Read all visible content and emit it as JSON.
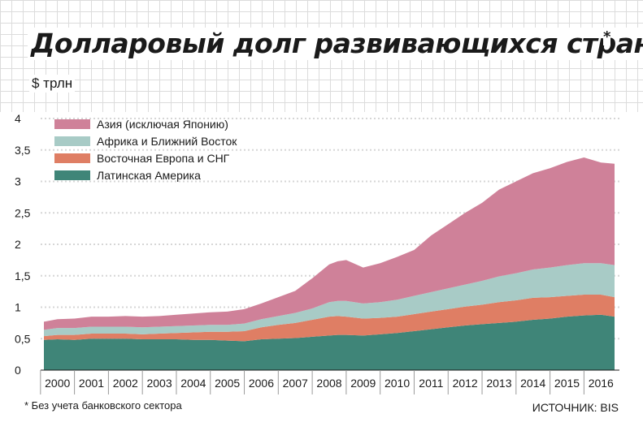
{
  "header": {
    "title": "Долларовый долг развивающихся стран",
    "title_mark": "*",
    "unit": "$ трлн"
  },
  "footer": {
    "footnote": "* Без учета банковского сектора",
    "source": "ИСТОЧНИК: BIS"
  },
  "colors": {
    "asia": "#cf8199",
    "africa_middle_east": "#a8cbc6",
    "eastern_europe_cis": "#df7e64",
    "latin_america": "#3f8578",
    "grid": "#d6d6d6"
  },
  "chart_data": {
    "type": "area",
    "stacked": true,
    "title": "Долларовый долг развивающихся стран",
    "ylabel": "$ трлн",
    "xlabel": "",
    "ylim": [
      0,
      4
    ],
    "xlim": [
      1999.6,
      2016.4
    ],
    "y_ticks": [
      {
        "value": 0,
        "label": "0"
      },
      {
        "value": 0.5,
        "label": "0,5"
      },
      {
        "value": 1,
        "label": "1"
      },
      {
        "value": 1.5,
        "label": "1,5"
      },
      {
        "value": 2,
        "label": "2"
      },
      {
        "value": 2.5,
        "label": "2,5"
      },
      {
        "value": 3,
        "label": "3"
      },
      {
        "value": 3.5,
        "label": "3,5"
      },
      {
        "value": 4,
        "label": "4"
      }
    ],
    "x_ticks": [
      "2000",
      "2001",
      "2002",
      "2003",
      "2004",
      "2005",
      "2006",
      "2007",
      "2008",
      "2009",
      "2010",
      "2011",
      "2012",
      "2013",
      "2014",
      "2015",
      "2016"
    ],
    "grid": true,
    "legend_position": "top-left",
    "x": [
      1999.6,
      2000.0,
      2000.5,
      2001.0,
      2001.5,
      2002.0,
      2002.5,
      2003.0,
      2003.5,
      2004.0,
      2004.5,
      2005.0,
      2005.5,
      2006.0,
      2006.5,
      2007.0,
      2007.5,
      2008.0,
      2008.25,
      2008.5,
      2009.0,
      2009.5,
      2010.0,
      2010.5,
      2011.0,
      2011.5,
      2012.0,
      2012.5,
      2013.0,
      2013.5,
      2014.0,
      2014.5,
      2015.0,
      2015.5,
      2016.0,
      2016.4
    ],
    "series": [
      {
        "name": "Латинская Америка",
        "color_key": "latin_america",
        "values": [
          0.48,
          0.49,
          0.48,
          0.5,
          0.5,
          0.5,
          0.49,
          0.49,
          0.49,
          0.48,
          0.48,
          0.47,
          0.46,
          0.49,
          0.5,
          0.51,
          0.53,
          0.55,
          0.56,
          0.56,
          0.55,
          0.57,
          0.59,
          0.62,
          0.65,
          0.68,
          0.71,
          0.73,
          0.75,
          0.77,
          0.8,
          0.82,
          0.85,
          0.87,
          0.88,
          0.85
        ]
      },
      {
        "name": "Восточная Европа и СНГ",
        "color_key": "eastern_europe_cis",
        "values": [
          0.06,
          0.07,
          0.08,
          0.08,
          0.08,
          0.08,
          0.08,
          0.09,
          0.1,
          0.12,
          0.13,
          0.14,
          0.16,
          0.19,
          0.22,
          0.24,
          0.27,
          0.3,
          0.3,
          0.29,
          0.27,
          0.26,
          0.26,
          0.27,
          0.28,
          0.29,
          0.3,
          0.31,
          0.33,
          0.34,
          0.35,
          0.34,
          0.33,
          0.33,
          0.32,
          0.31
        ]
      },
      {
        "name": "Африка и Ближний Восток",
        "color_key": "africa_middle_east",
        "values": [
          0.1,
          0.11,
          0.11,
          0.11,
          0.11,
          0.11,
          0.11,
          0.11,
          0.11,
          0.11,
          0.11,
          0.11,
          0.12,
          0.13,
          0.14,
          0.16,
          0.18,
          0.23,
          0.24,
          0.25,
          0.24,
          0.25,
          0.27,
          0.29,
          0.31,
          0.33,
          0.35,
          0.38,
          0.41,
          0.43,
          0.45,
          0.47,
          0.49,
          0.5,
          0.5,
          0.51
        ]
      },
      {
        "name": "Азия (исключая Японию)",
        "color_key": "asia",
        "values": [
          0.13,
          0.14,
          0.15,
          0.16,
          0.16,
          0.17,
          0.17,
          0.17,
          0.18,
          0.19,
          0.2,
          0.21,
          0.23,
          0.25,
          0.3,
          0.35,
          0.48,
          0.6,
          0.63,
          0.65,
          0.57,
          0.62,
          0.68,
          0.73,
          0.9,
          1.02,
          1.14,
          1.24,
          1.38,
          1.46,
          1.53,
          1.58,
          1.64,
          1.68,
          1.6,
          1.61
        ]
      }
    ]
  }
}
